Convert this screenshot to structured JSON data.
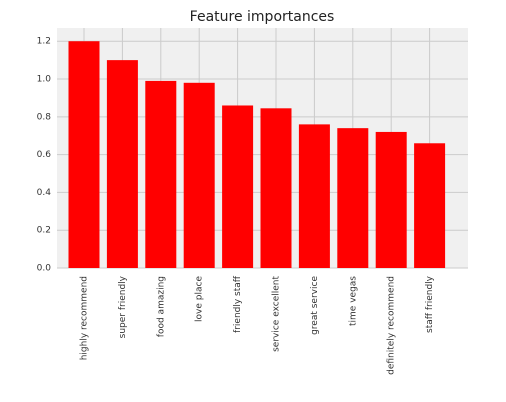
{
  "chart_data": {
    "type": "bar",
    "title": "Feature importances",
    "categories": [
      "highly recommend",
      "super friendly",
      "food amazing",
      "love place",
      "friendly staff",
      "service excellent",
      "great service",
      "time vegas",
      "definitely recommend",
      "staff friendly"
    ],
    "values": [
      1.2,
      1.1,
      0.99,
      0.98,
      0.86,
      0.845,
      0.76,
      0.74,
      0.72,
      0.66
    ],
    "color": "#ff0000",
    "ylim": [
      0,
      1.27
    ],
    "yticks": [
      {
        "value": 0,
        "label": "0.0"
      },
      0.2,
      0.4,
      0.6,
      0.8,
      {
        "value": 1,
        "label": "1.0"
      },
      1.2
    ],
    "grid": true
  }
}
